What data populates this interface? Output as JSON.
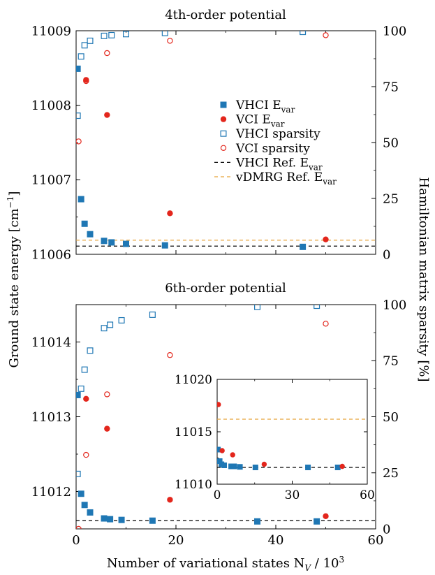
{
  "shared": {
    "xlabel": "Number of variational states N",
    "xlabel_sub": "V",
    "xlabel_tail": " / 10",
    "xlabel_sup": "3",
    "ylabel_left": "Ground state energy [cm",
    "ylabel_left_sup": "−1",
    "ylabel_left_tail": "]",
    "ylabel_right": "Hamiltonian matrix sparsity [%]"
  },
  "legend": {
    "placement": "right-middle of top panel",
    "entries": [
      {
        "label": "VHCI E",
        "sub": "var",
        "marker": "filled-square",
        "color": "#1f77b4"
      },
      {
        "label": "VCI E",
        "sub": "var",
        "marker": "filled-circle",
        "color": "#e3261c"
      },
      {
        "label": "VHCI sparsity",
        "marker": "open-square",
        "color": "#1f77b4"
      },
      {
        "label": "VCI sparsity",
        "marker": "open-circle",
        "color": "#e3261c"
      },
      {
        "label": "VHCI Ref. E",
        "sub": "var",
        "marker": "dashed-line",
        "color": "#000000"
      },
      {
        "label": "vDMRG Ref. E",
        "sub": "var",
        "marker": "dashed-line",
        "color": "#e8a33a"
      }
    ]
  },
  "chart_data": [
    {
      "type": "scatter",
      "title": "4th-order potential",
      "xlim": [
        0,
        60
      ],
      "ylim": [
        11006,
        11009
      ],
      "y2lim": [
        0,
        100
      ],
      "xticks": [
        "0",
        "20",
        "40",
        "60"
      ],
      "yticks": [
        "11006",
        "11007",
        "11008",
        "11009"
      ],
      "y2ticks": [
        "0",
        "25",
        "50",
        "75",
        "100"
      ],
      "series": [
        {
          "name": "VHCI E_var",
          "axis": "left",
          "marker": "filled-square",
          "color": "#1f77b4",
          "x": [
            0.3,
            1.0,
            1.7,
            2.8,
            5.6,
            7.1,
            10.0,
            17.8,
            45.4
          ],
          "y": [
            11008.49,
            11006.74,
            11006.41,
            11006.27,
            11006.18,
            11006.16,
            11006.14,
            11006.12,
            11006.1
          ]
        },
        {
          "name": "VCI E_var",
          "axis": "left",
          "marker": "filled-circle",
          "color": "#e3261c",
          "x": [
            2.0,
            6.2,
            18.8,
            50.0
          ],
          "y": [
            11008.34,
            11007.87,
            11006.55,
            11006.2
          ]
        },
        {
          "name": "VHCI sparsity",
          "axis": "right",
          "marker": "open-square",
          "color": "#1f77b4",
          "x": [
            0.3,
            1.0,
            1.7,
            2.8,
            5.6,
            7.1,
            10.0,
            17.8,
            45.4
          ],
          "y": [
            62,
            88.5,
            93.5,
            95.5,
            97.7,
            98,
            98.5,
            99,
            99.5
          ]
        },
        {
          "name": "VCI sparsity",
          "axis": "right",
          "marker": "open-circle",
          "color": "#e3261c",
          "x": [
            0.5,
            2.0,
            6.2,
            18.8,
            50.0
          ],
          "y": [
            50.5,
            77.5,
            90,
            95.5,
            98
          ]
        },
        {
          "name": "VHCI Ref. E_var",
          "axis": "left",
          "marker": "dashed-line",
          "color": "#000000",
          "x": [
            0,
            60
          ],
          "y": [
            11006.11,
            11006.11
          ]
        },
        {
          "name": "vDMRG Ref. E_var",
          "axis": "left",
          "marker": "dashed-line",
          "color": "#e8a33a",
          "x": [
            0,
            60
          ],
          "y": [
            11006.19,
            11006.19
          ]
        }
      ]
    },
    {
      "type": "scatter",
      "title": "6th-order potential",
      "xlim": [
        0,
        60
      ],
      "ylim": [
        11011.5,
        11014.5
      ],
      "y2lim": [
        0,
        100
      ],
      "xticks": [
        "0",
        "20",
        "40",
        "60"
      ],
      "yticks": [
        "11012",
        "11013",
        "11014"
      ],
      "y2ticks": [
        "0",
        "25",
        "50",
        "75",
        "100"
      ],
      "series": [
        {
          "name": "VHCI E_var",
          "axis": "left",
          "marker": "filled-square",
          "color": "#1f77b4",
          "x": [
            0.3,
            1.0,
            1.7,
            2.8,
            5.6,
            6.8,
            9.1,
            15.3,
            36.3,
            48.2
          ],
          "y": [
            11013.29,
            11011.97,
            11011.82,
            11011.72,
            11011.64,
            11011.63,
            11011.62,
            11011.61,
            11011.6,
            11011.6
          ]
        },
        {
          "name": "VCI E_var",
          "axis": "left",
          "marker": "filled-circle",
          "color": "#e3261c",
          "x": [
            2.0,
            6.2,
            18.8,
            50.0
          ],
          "y": [
            11013.24,
            11012.84,
            11011.89,
            11011.67
          ]
        },
        {
          "name": "VHCI sparsity",
          "axis": "right",
          "marker": "open-square",
          "color": "#1f77b4",
          "x": [
            0.3,
            1.0,
            1.7,
            2.8,
            5.6,
            6.8,
            9.1,
            15.3,
            36.3,
            48.2
          ],
          "y": [
            24.5,
            62.5,
            71,
            79.5,
            89.5,
            91,
            93,
            95.5,
            99,
            99.5
          ]
        },
        {
          "name": "VCI sparsity",
          "axis": "right",
          "marker": "open-circle",
          "color": "#e3261c",
          "x": [
            0.5,
            2.0,
            6.2,
            18.8,
            50.0
          ],
          "y": [
            0,
            33,
            60,
            77.5,
            91.5
          ]
        },
        {
          "name": "VHCI Ref. E_var",
          "axis": "left",
          "marker": "dashed-line",
          "color": "#000000",
          "x": [
            0,
            60
          ],
          "y": [
            11011.61,
            11011.61
          ]
        }
      ]
    },
    {
      "type": "scatter",
      "title": "",
      "inset": true,
      "xlim": [
        0,
        60
      ],
      "ylim": [
        11010,
        11020
      ],
      "xticks": [
        "0",
        "30",
        "60"
      ],
      "yticks": [
        "11010",
        "11015",
        "11020"
      ],
      "series": [
        {
          "name": "VHCI E_var",
          "axis": "left",
          "marker": "filled-square",
          "color": "#1f77b4",
          "x": [
            0.3,
            1.0,
            1.7,
            2.8,
            5.6,
            6.8,
            9.1,
            15.3,
            36.3,
            48.2
          ],
          "y": [
            11013.3,
            11012.2,
            11011.9,
            11011.8,
            11011.7,
            11011.7,
            11011.65,
            11011.6,
            11011.6,
            11011.6
          ]
        },
        {
          "name": "VCI E_var",
          "axis": "left",
          "marker": "filled-circle",
          "color": "#e3261c",
          "x": [
            0.5,
            2.0,
            6.2,
            18.8,
            50.0
          ],
          "y": [
            11017.6,
            11013.2,
            11012.8,
            11011.9,
            11011.7
          ]
        },
        {
          "name": "VHCI Ref. E_var",
          "axis": "left",
          "marker": "dashed-line",
          "color": "#000000",
          "x": [
            0,
            60
          ],
          "y": [
            11011.6,
            11011.6
          ]
        },
        {
          "name": "vDMRG Ref. E_var",
          "axis": "left",
          "marker": "dashed-line",
          "color": "#e8a33a",
          "x": [
            0,
            60
          ],
          "y": [
            11016.2,
            11016.2
          ]
        }
      ]
    }
  ]
}
